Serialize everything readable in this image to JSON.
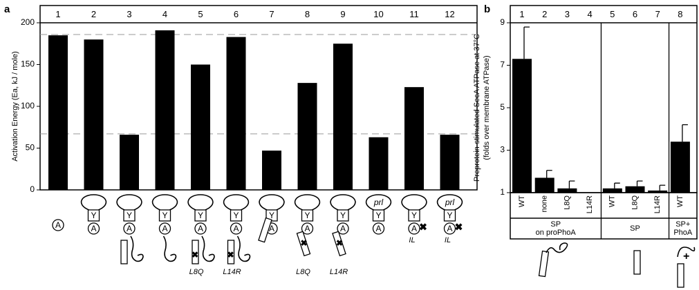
{
  "chart_data": [
    {
      "type": "bar",
      "panel_label": "a",
      "y_label": "Activation Energy (Ea, kJ / mole)",
      "categories": [
        "1",
        "2",
        "3",
        "4",
        "5",
        "6",
        "7",
        "8",
        "9",
        "10",
        "11",
        "12"
      ],
      "values": [
        185,
        180,
        66,
        191,
        150,
        183,
        47,
        128,
        175,
        63,
        123,
        66
      ],
      "color": "#000000",
      "ylim": [
        0,
        200
      ],
      "yticks": [
        0,
        50,
        100,
        150,
        200
      ],
      "reference_lines": [
        186,
        67
      ],
      "lane_labels": [
        [
          {
            "text": "A",
            "shape": "circle"
          }
        ],
        [
          {
            "text": "Y",
            "shape": "box"
          },
          {
            "text": "A",
            "shape": "circle"
          }
        ],
        [
          {
            "text": "Y",
            "shape": "box"
          },
          {
            "text": "A",
            "shape": "circle"
          }
        ],
        [
          {
            "text": "Y",
            "shape": "box"
          },
          {
            "text": "A",
            "shape": "circle"
          }
        ],
        [
          {
            "text": "Y",
            "shape": "box"
          },
          {
            "text": "A",
            "shape": "circle"
          },
          {
            "text": "L8Q",
            "shape": "mutation"
          }
        ],
        [
          {
            "text": "Y",
            "shape": "box"
          },
          {
            "text": "A",
            "shape": "circle"
          },
          {
            "text": "L14R",
            "shape": "mutation"
          }
        ],
        [
          {
            "text": "Y",
            "shape": "box"
          },
          {
            "text": "A",
            "shape": "circle"
          }
        ],
        [
          {
            "text": "Y",
            "shape": "box"
          },
          {
            "text": "A",
            "shape": "circle"
          },
          {
            "text": "L8Q",
            "shape": "mutation"
          }
        ],
        [
          {
            "text": "Y",
            "shape": "box"
          },
          {
            "text": "A",
            "shape": "circle"
          },
          {
            "text": "L14R",
            "shape": "mutation"
          }
        ],
        [
          {
            "text": "prl",
            "shape": "loop"
          },
          {
            "text": "Y",
            "shape": "box"
          },
          {
            "text": "A",
            "shape": "circle"
          }
        ],
        [
          {
            "text": "Y",
            "shape": "box"
          },
          {
            "text": "A",
            "shape": "circle"
          },
          {
            "text": "IL",
            "shape": "mark"
          }
        ],
        [
          {
            "text": "prl",
            "shape": "loop"
          },
          {
            "text": "Y",
            "shape": "box"
          },
          {
            "text": "A",
            "shape": "circle"
          },
          {
            "text": "IL",
            "shape": "mark"
          }
        ]
      ]
    },
    {
      "type": "bar",
      "panel_label": "b",
      "y_label": "Preprotein-stimulated SecA ATPase at 37°C",
      "y_label_2": "(folds over membrane ATPase)",
      "categories": [
        "1",
        "2",
        "3",
        "4",
        "5",
        "6",
        "7",
        "8"
      ],
      "x_labels": [
        "WT",
        "none",
        "L8Q",
        "L14R",
        "WT",
        "L8Q",
        "L14R",
        "WT"
      ],
      "values": [
        7.3,
        1.7,
        1.2,
        1.0,
        1.2,
        1.3,
        1.1,
        3.4
      ],
      "errors": [
        1.5,
        0.35,
        0.35,
        null,
        0.25,
        0.25,
        0.25,
        0.8
      ],
      "color": "#000000",
      "ylim": [
        1,
        9
      ],
      "yticks": [
        1,
        3,
        5,
        7,
        9
      ],
      "groups": [
        [
          "SP",
          "on proPhoA"
        ],
        [
          "SP"
        ],
        [
          "SP+",
          "PhoA"
        ]
      ]
    }
  ]
}
